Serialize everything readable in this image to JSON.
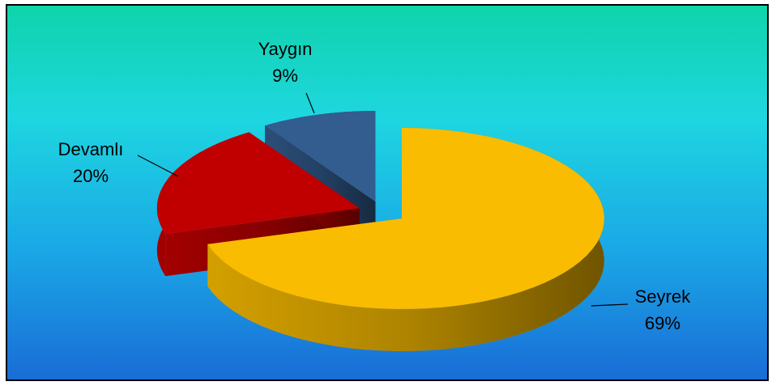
{
  "chart_data": {
    "type": "pie",
    "categories": [
      "Seyrek",
      "Devamlı",
      "Yaygın"
    ],
    "values": [
      69,
      20,
      9
    ],
    "value_labels": [
      "69%",
      "20%",
      "9%"
    ],
    "colors": [
      "#f9bc00",
      "#c00000",
      "#335c8f"
    ],
    "start_angle": 0,
    "direction": "clockwise",
    "exploded": true,
    "three_d": true
  }
}
